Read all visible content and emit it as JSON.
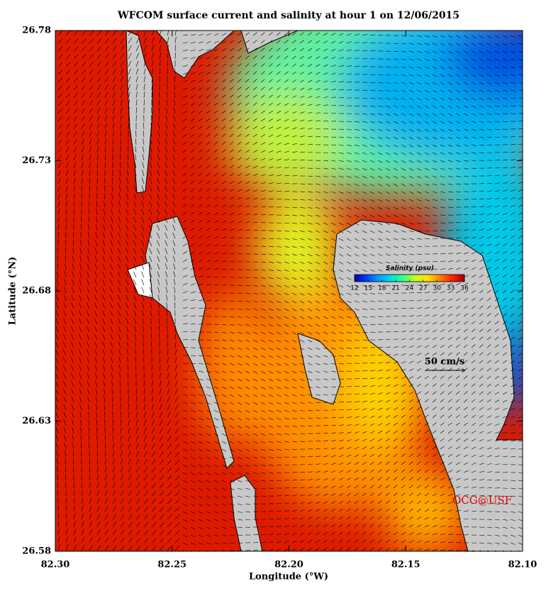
{
  "chart_data": {
    "type": "map",
    "title": "WFCOM surface current and salinity at hour 1 on 12/06/2015",
    "xlabel": "Longitude (°W)",
    "ylabel": "Latitude (°N)",
    "xlim": [
      82.3,
      82.1
    ],
    "xticks": [
      {
        "value": 82.3,
        "label": "82.30"
      },
      82.25,
      {
        "value": 82.2,
        "label": "82.20"
      },
      82.15,
      {
        "value": 82.1,
        "label": "82.10"
      }
    ],
    "ylim": [
      26.58,
      26.78
    ],
    "yticks": [
      26.58,
      26.63,
      26.68,
      26.73,
      26.78
    ],
    "colorbar": {
      "title": "Salinity (psu)",
      "lim": [
        12,
        36
      ],
      "ticks": [
        12,
        15,
        18,
        21,
        24,
        27,
        30,
        33,
        36
      ],
      "colors": [
        "#0000a0",
        "#0040ff",
        "#00a0ff",
        "#00e0e0",
        "#40ff80",
        "#c0ff20",
        "#ffe000",
        "#ff8000",
        "#ff2000",
        "#a00000"
      ]
    },
    "scale_label": "50 cm/s",
    "credit": "OCG@USF"
  }
}
